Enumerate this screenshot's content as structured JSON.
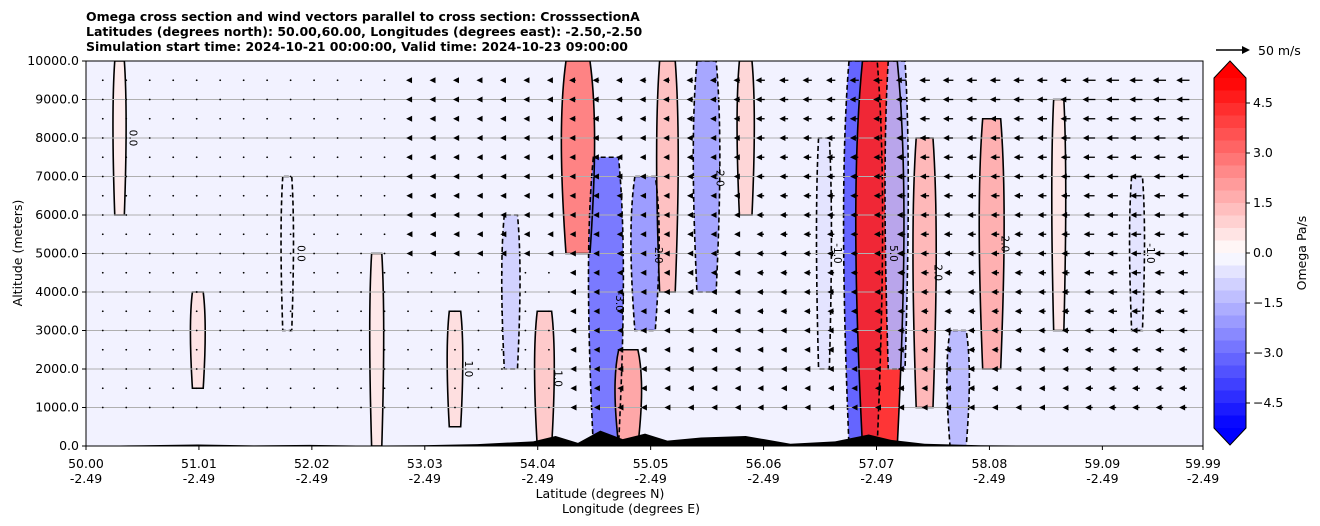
{
  "chart_data": {
    "type": "contour cross section with wind vectors",
    "title_lines": [
      "Omega cross section and wind vectors parallel to cross section: CrosssectionA",
      "Latitudes (degrees north): 50.00,60.00, Longitudes (degrees east): -2.50,-2.50",
      "Simulation start time: 2024-10-21 00:00:00, Valid time: 2024-10-23 09:00:00"
    ],
    "xlabel_lines": [
      "Latitude (degrees N)",
      "Longitude (degrees E)"
    ],
    "ylabel": "Altitude (meters)",
    "x_ticks": [
      {
        "lat": 50.0,
        "top": "50.00",
        "bottom": "-2.49"
      },
      {
        "lat": 51.01,
        "top": "51.01",
        "bottom": "-2.49"
      },
      {
        "lat": 52.02,
        "top": "52.02",
        "bottom": "-2.49"
      },
      {
        "lat": 53.03,
        "top": "53.03",
        "bottom": "-2.49"
      },
      {
        "lat": 54.04,
        "top": "54.04",
        "bottom": "-2.49"
      },
      {
        "lat": 55.05,
        "top": "55.05",
        "bottom": "-2.49"
      },
      {
        "lat": 56.06,
        "top": "56.06",
        "bottom": "-2.49"
      },
      {
        "lat": 57.07,
        "top": "57.07",
        "bottom": "-2.49"
      },
      {
        "lat": 58.08,
        "top": "58.08",
        "bottom": "-2.49"
      },
      {
        "lat": 59.09,
        "top": "59.09",
        "bottom": "-2.49"
      },
      {
        "lat": 59.99,
        "top": "59.99",
        "bottom": "-2.49"
      }
    ],
    "xlim": [
      50.0,
      59.99
    ],
    "y_ticks": [
      {
        "value": 0,
        "label": "0.0"
      },
      {
        "value": 1000,
        "label": "1000.0"
      },
      {
        "value": 2000,
        "label": "2000.0"
      },
      {
        "value": 3000,
        "label": "3000.0"
      },
      {
        "value": 4000,
        "label": "4000.0"
      },
      {
        "value": 5000,
        "label": "5000.0"
      },
      {
        "value": 6000,
        "label": "6000.0"
      },
      {
        "value": 7000,
        "label": "7000.0"
      },
      {
        "value": 8000,
        "label": "8000.0"
      },
      {
        "value": 9000,
        "label": "9000.0"
      },
      {
        "value": 10000,
        "label": "10000.0"
      }
    ],
    "ylim": [
      0,
      10000
    ],
    "grid": "horizontal",
    "colorbar": {
      "label": "Omega Pa/s",
      "range": [
        -5.25,
        5.25
      ],
      "level_step": 0.375,
      "extend": "both",
      "colormap": "bwr",
      "ticks": [
        {
          "value": 4.5,
          "label": "4.5"
        },
        {
          "value": 3.0,
          "label": "3.0"
        },
        {
          "value": 1.5,
          "label": "1.5"
        },
        {
          "value": 0.0,
          "label": "0.0"
        },
        {
          "value": -1.5,
          "label": "−1.5"
        },
        {
          "value": -3.0,
          "label": "−3.0"
        },
        {
          "value": -4.5,
          "label": "−4.5"
        }
      ]
    },
    "quiver_key": {
      "speed": 50,
      "label": "50 m/s"
    },
    "omega_structure": [
      {
        "lat": 50.3,
        "alt_bottom": 6000,
        "alt_top": 10000,
        "omega": 0.4
      },
      {
        "lat": 51.0,
        "alt_bottom": 1500,
        "alt_top": 4000,
        "omega": 0.6
      },
      {
        "lat": 51.8,
        "alt_bottom": 3000,
        "alt_top": 7000,
        "omega": -0.3
      },
      {
        "lat": 52.6,
        "alt_bottom": 0,
        "alt_top": 5000,
        "omega": 0.5
      },
      {
        "lat": 53.3,
        "alt_bottom": 500,
        "alt_top": 3500,
        "omega": 0.7
      },
      {
        "lat": 53.8,
        "alt_bottom": 2000,
        "alt_top": 6000,
        "omega": -1.0
      },
      {
        "lat": 54.1,
        "alt_bottom": 0,
        "alt_top": 3500,
        "omega": 1.2
      },
      {
        "lat": 54.4,
        "alt_bottom": 5000,
        "alt_top": 10000,
        "omega": 2.8
      },
      {
        "lat": 54.65,
        "alt_bottom": 0,
        "alt_top": 7500,
        "omega": -3.0
      },
      {
        "lat": 54.85,
        "alt_bottom": 0,
        "alt_top": 2500,
        "omega": 2.0
      },
      {
        "lat": 55.0,
        "alt_bottom": 3000,
        "alt_top": 7000,
        "omega": -2.2
      },
      {
        "lat": 55.2,
        "alt_bottom": 4000,
        "alt_top": 10000,
        "omega": 1.4
      },
      {
        "lat": 55.55,
        "alt_bottom": 4000,
        "alt_top": 10000,
        "omega": -2.0
      },
      {
        "lat": 55.9,
        "alt_bottom": 6000,
        "alt_top": 10000,
        "omega": 0.9
      },
      {
        "lat": 56.6,
        "alt_bottom": 2000,
        "alt_top": 8000,
        "omega": -0.6
      },
      {
        "lat": 56.95,
        "alt_bottom": 0,
        "alt_top": 10000,
        "omega": -3.5
      },
      {
        "lat": 57.1,
        "alt_bottom": 0,
        "alt_top": 10000,
        "omega": 4.6
      },
      {
        "lat": 57.25,
        "alt_bottom": 2000,
        "alt_top": 10000,
        "omega": -1.6
      },
      {
        "lat": 57.5,
        "alt_bottom": 1000,
        "alt_top": 8000,
        "omega": 1.6
      },
      {
        "lat": 57.8,
        "alt_bottom": 0,
        "alt_top": 3000,
        "omega": -1.5
      },
      {
        "lat": 58.1,
        "alt_bottom": 2000,
        "alt_top": 8500,
        "omega": 1.8
      },
      {
        "lat": 58.7,
        "alt_bottom": 3000,
        "alt_top": 9000,
        "omega": 0.5
      },
      {
        "lat": 59.4,
        "alt_bottom": 3000,
        "alt_top": 7000,
        "omega": -0.6
      }
    ],
    "wind_bands": [
      {
        "lat_from": 50.0,
        "lat_to": 52.8,
        "speed": 2
      },
      {
        "lat_from": 52.8,
        "lat_to": 54.2,
        "speed": 6
      },
      {
        "lat_from": 54.2,
        "lat_to": 56.0,
        "speed": 10
      },
      {
        "lat_from": 56.0,
        "lat_to": 57.2,
        "speed": 14
      },
      {
        "lat_from": 57.2,
        "lat_to": 58.8,
        "speed": 16
      },
      {
        "lat_from": 58.8,
        "lat_to": 59.99,
        "speed": 20
      }
    ],
    "wind_direction": "toward decreasing latitude"
  }
}
